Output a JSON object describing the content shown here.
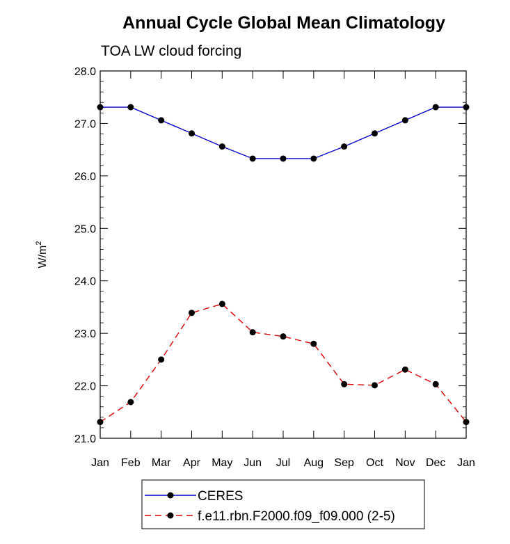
{
  "chart_data": {
    "type": "line",
    "title": "Annual Cycle Global Mean Climatology",
    "subtitle": "TOA LW cloud forcing",
    "ylabel": "W/m",
    "ylabel_superscript": "2",
    "xlabel": "",
    "categories": [
      "Jan",
      "Feb",
      "Mar",
      "Apr",
      "May",
      "Jun",
      "Jul",
      "Aug",
      "Sep",
      "Oct",
      "Nov",
      "Dec",
      "Jan"
    ],
    "ylim": [
      21.0,
      28.0
    ],
    "yticks": [
      "21.0",
      "22.0",
      "23.0",
      "24.0",
      "25.0",
      "26.0",
      "27.0",
      "28.0"
    ],
    "grid": false,
    "legend_position": "bottom",
    "series": [
      {
        "name": "CERES",
        "color": "#0000cc",
        "dash": "solid",
        "marker": "filled-circle",
        "values": [
          27.31,
          27.31,
          27.06,
          26.81,
          26.56,
          26.33,
          26.33,
          26.33,
          26.56,
          26.81,
          27.06,
          27.31,
          27.31
        ]
      },
      {
        "name": "f.e11.rbn.F2000.f09_f09.000 (2-5)",
        "color": "#dd0000",
        "dash": "dashed",
        "marker": "filled-circle",
        "values": [
          21.31,
          21.69,
          22.5,
          23.39,
          23.56,
          23.02,
          22.94,
          22.8,
          22.03,
          22.01,
          22.31,
          22.03,
          21.31
        ]
      }
    ]
  }
}
